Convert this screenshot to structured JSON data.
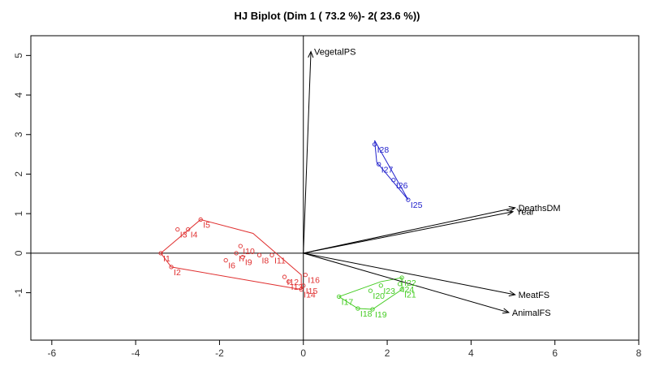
{
  "chart_data": {
    "type": "scatter",
    "title": "HJ Biplot (Dim 1 ( 73.2 %)- 2( 23.6 %))",
    "xlabel": "",
    "ylabel": "",
    "xlim": [
      -6.5,
      8
    ],
    "ylim": [
      -2.2,
      5.5
    ],
    "xticks": [
      -6,
      -4,
      -2,
      0,
      2,
      4,
      6,
      8
    ],
    "yticks": [
      -1,
      0,
      1,
      2,
      3,
      4,
      5
    ],
    "grid": false,
    "reference_lines": {
      "x": 0,
      "y": 0
    },
    "groups": [
      {
        "color": "#e03030",
        "points": [
          {
            "label": "I1",
            "x": -3.4,
            "y": 0.0
          },
          {
            "label": "I2",
            "x": -3.15,
            "y": -0.35
          },
          {
            "label": "I3",
            "x": -3.0,
            "y": 0.6
          },
          {
            "label": "I4",
            "x": -2.75,
            "y": 0.6
          },
          {
            "label": "I5",
            "x": -2.45,
            "y": 0.85
          },
          {
            "label": "I6",
            "x": -1.85,
            "y": -0.18
          },
          {
            "label": "I7",
            "x": -1.6,
            "y": 0.0
          },
          {
            "label": "I8",
            "x": -1.05,
            "y": -0.05
          },
          {
            "label": "I9",
            "x": -1.45,
            "y": -0.1
          },
          {
            "label": "I10",
            "x": -1.5,
            "y": 0.18
          },
          {
            "label": "I11",
            "x": -0.75,
            "y": -0.05
          },
          {
            "label": "I12",
            "x": -0.45,
            "y": -0.6
          },
          {
            "label": "I13",
            "x": -0.35,
            "y": -0.72
          },
          {
            "label": "I14",
            "x": -0.05,
            "y": -0.92
          },
          {
            "label": "I15",
            "x": 0.0,
            "y": -0.82
          },
          {
            "label": "I16",
            "x": 0.05,
            "y": -0.55
          }
        ],
        "hull": [
          [
            -3.4,
            0.0
          ],
          [
            -2.45,
            0.85
          ],
          [
            -1.2,
            0.5
          ],
          [
            -0.05,
            -0.55
          ],
          [
            -0.05,
            -0.92
          ],
          [
            -3.15,
            -0.35
          ]
        ]
      },
      {
        "color": "#44cc22",
        "points": [
          {
            "label": "I17",
            "x": 0.85,
            "y": -1.1
          },
          {
            "label": "I18",
            "x": 1.3,
            "y": -1.4
          },
          {
            "label": "I19",
            "x": 1.65,
            "y": -1.42
          },
          {
            "label": "I20",
            "x": 1.6,
            "y": -0.95
          },
          {
            "label": "I21",
            "x": 2.35,
            "y": -0.92
          },
          {
            "label": "I22",
            "x": 2.35,
            "y": -0.62
          },
          {
            "label": "I23",
            "x": 1.85,
            "y": -0.82
          },
          {
            "label": "I24",
            "x": 2.3,
            "y": -0.78
          }
        ],
        "hull": [
          [
            0.85,
            -1.1
          ],
          [
            1.85,
            -0.72
          ],
          [
            2.35,
            -0.62
          ],
          [
            2.35,
            -0.92
          ],
          [
            1.65,
            -1.42
          ],
          [
            1.3,
            -1.4
          ]
        ]
      },
      {
        "color": "#2222cc",
        "points": [
          {
            "label": "I25",
            "x": 2.5,
            "y": 1.35
          },
          {
            "label": "I26",
            "x": 2.15,
            "y": 1.85
          },
          {
            "label": "I27",
            "x": 1.8,
            "y": 2.25
          },
          {
            "label": "I28",
            "x": 1.7,
            "y": 2.75
          }
        ],
        "hull": [
          [
            1.7,
            2.85
          ],
          [
            2.5,
            1.35
          ],
          [
            1.75,
            2.3
          ]
        ]
      }
    ],
    "variables": [
      {
        "label": "VegetalPS",
        "x": 0.18,
        "y": 5.1
      },
      {
        "label": "DeathsDM",
        "x": 5.05,
        "y": 1.15
      },
      {
        "label": "Year",
        "x": 5.0,
        "y": 1.05
      },
      {
        "label": "MeatFS",
        "x": 5.05,
        "y": -1.05
      },
      {
        "label": "AnimalFS",
        "x": 4.9,
        "y": -1.5
      }
    ]
  }
}
